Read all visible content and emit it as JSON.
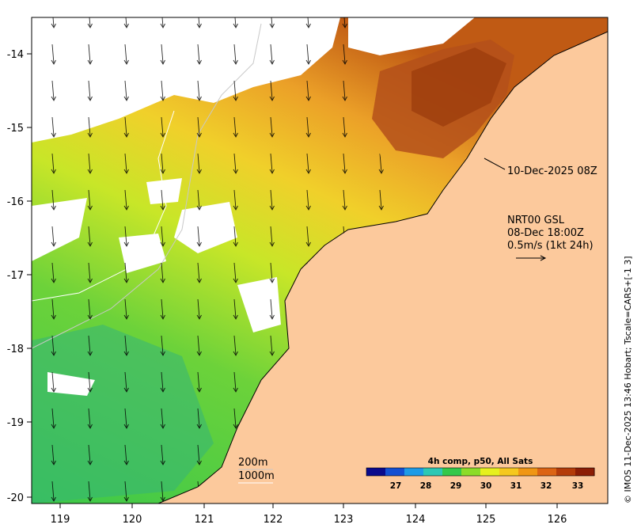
{
  "map": {
    "date_label": "10-Dec-2025 08Z",
    "current_info": {
      "line1": "NRT00 GSL",
      "line2": "08-Dec 18:00Z",
      "line3": "0.5m/s (1kt 24h)"
    },
    "depth_contours": {
      "line1": "200m",
      "line2": "1000m"
    },
    "colorbar": {
      "title": "4h comp, p50, All Sats",
      "ticks": [
        "27",
        "28",
        "29",
        "30",
        "31",
        "32",
        "33"
      ],
      "colors": [
        "#0a0a8c",
        "#1450d2",
        "#1e9be6",
        "#2dc8b4",
        "#33c84a",
        "#8cdc28",
        "#e6f01e",
        "#f5c81e",
        "#f09614",
        "#dc6414",
        "#b43c0a",
        "#8c1e06"
      ]
    },
    "credit": "© IMOS 11-Dec-2025 13:46 Hobart; Tscale=CARS+[-1 3]",
    "axes": {
      "x_ticks": [
        "119",
        "120",
        "121",
        "122",
        "123",
        "124",
        "125",
        "126"
      ],
      "y_ticks": [
        "-14",
        "-15",
        "-16",
        "-17",
        "-18",
        "-19",
        "-20"
      ]
    },
    "palette": {
      "land": "#fcc99c",
      "ocean_cool": "#3cc83c",
      "ocean_mid": "#c8e628",
      "ocean_warm": "#eba028",
      "ocean_hot": "#b4460f",
      "cloud": "#ffffff"
    }
  }
}
